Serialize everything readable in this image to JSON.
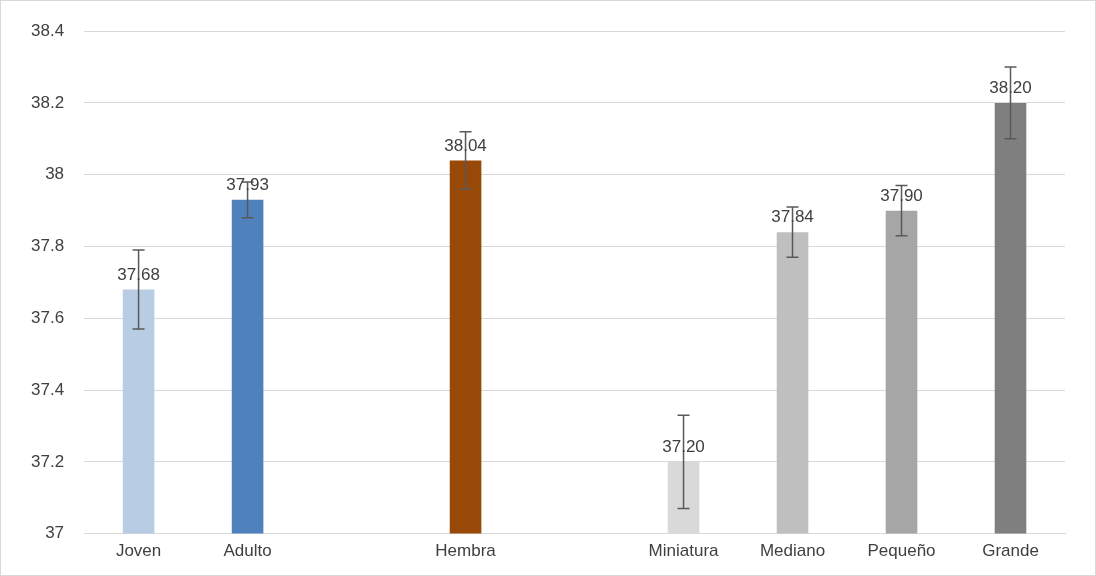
{
  "chart_data": {
    "type": "bar",
    "categories": [
      "Joven",
      "Adulto",
      null,
      "Hembra",
      null,
      "Miniatura",
      "Mediano",
      "Pequeño",
      "Grande"
    ],
    "values": [
      37.68,
      37.93,
      null,
      38.04,
      null,
      37.2,
      37.84,
      37.9,
      38.2
    ],
    "colors": [
      "#b8cce4",
      "#4f81bd",
      "#ffffff",
      "#984807",
      "#ffffff",
      "#d9d9d9",
      "#bfbfbf",
      "#a6a6a6",
      "#7f7f7f"
    ],
    "errors": [
      0.11,
      0.05,
      null,
      0.08,
      null,
      0.13,
      0.07,
      0.07,
      0.1
    ],
    "value_labels": [
      "37.68",
      "37.93",
      null,
      "38.04",
      null,
      "37.20",
      "37.84",
      "37.90",
      "38.20"
    ],
    "ylim": [
      37,
      38.4
    ],
    "yticks": [
      37,
      37.2,
      37.4,
      37.6,
      37.8,
      38,
      38.2,
      38.4
    ],
    "grid": "y",
    "legend": false
  }
}
